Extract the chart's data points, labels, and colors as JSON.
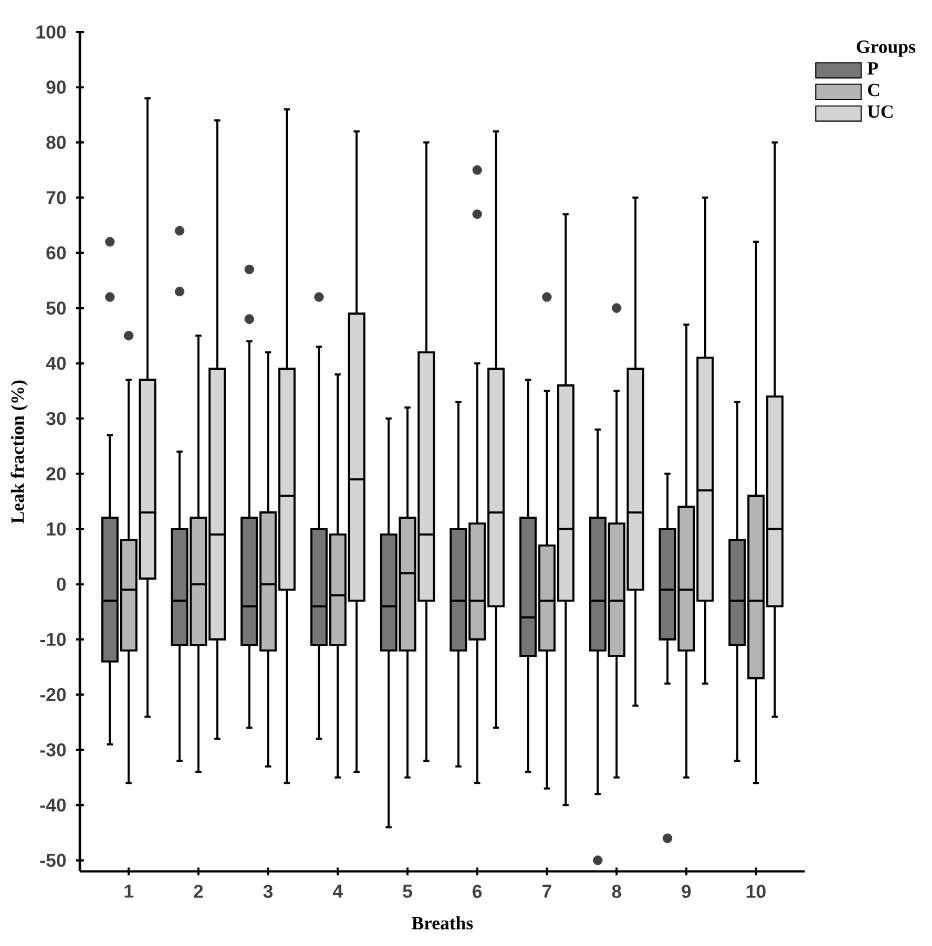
{
  "chart_data": {
    "type": "box",
    "xlabel": "Breaths",
    "ylabel": "Leak fraction (%)",
    "legend_title": "Groups",
    "legend": "top right",
    "grid": false,
    "categories": [
      "1",
      "2",
      "3",
      "4",
      "5",
      "6",
      "7",
      "8",
      "9",
      "10"
    ],
    "ylim": [
      -52,
      100
    ],
    "yticks": [
      -50,
      -40,
      -30,
      -20,
      -10,
      0,
      10,
      20,
      30,
      40,
      50,
      60,
      70,
      80,
      90,
      100
    ],
    "series": [
      {
        "name": "P",
        "color": "#767676",
        "boxes": [
          {
            "low": -29,
            "q1": -14,
            "median": -3,
            "q3": 12,
            "high": 27,
            "outliers": [
              62,
              52
            ]
          },
          {
            "low": -32,
            "q1": -11,
            "median": -3,
            "q3": 10,
            "high": 24,
            "outliers": [
              64,
              53
            ]
          },
          {
            "low": -26,
            "q1": -11,
            "median": -4,
            "q3": 12,
            "high": 44,
            "outliers": [
              57,
              48
            ]
          },
          {
            "low": -28,
            "q1": -11,
            "median": -4,
            "q3": 10,
            "high": 43,
            "outliers": [
              52
            ]
          },
          {
            "low": -44,
            "q1": -12,
            "median": -4,
            "q3": 9,
            "high": 30
          },
          {
            "low": -33,
            "q1": -12,
            "median": -3,
            "q3": 10,
            "high": 33
          },
          {
            "low": -34,
            "q1": -13,
            "median": -6,
            "q3": 12,
            "high": 37
          },
          {
            "low": -38,
            "q1": -12,
            "median": -3,
            "q3": 12,
            "high": 28,
            "outliers": [
              -50
            ]
          },
          {
            "low": -18,
            "q1": -10,
            "median": -1,
            "q3": 10,
            "high": 20,
            "outliers": [
              -46
            ]
          },
          {
            "low": -32,
            "q1": -11,
            "median": -3,
            "q3": 8,
            "high": 33
          }
        ]
      },
      {
        "name": "C",
        "color": "#b4b4b4",
        "boxes": [
          {
            "low": -36,
            "q1": -12,
            "median": -1,
            "q3": 8,
            "high": 37,
            "outliers": [
              45
            ]
          },
          {
            "low": -34,
            "q1": -11,
            "median": 0,
            "q3": 12,
            "high": 45
          },
          {
            "low": -33,
            "q1": -12,
            "median": 0,
            "q3": 13,
            "high": 42
          },
          {
            "low": -35,
            "q1": -11,
            "median": -2,
            "q3": 9,
            "high": 38
          },
          {
            "low": -35,
            "q1": -12,
            "median": 2,
            "q3": 12,
            "high": 32
          },
          {
            "low": -36,
            "q1": -10,
            "median": -3,
            "q3": 11,
            "high": 40,
            "outliers": [
              75,
              67
            ]
          },
          {
            "low": -37,
            "q1": -12,
            "median": -3,
            "q3": 7,
            "high": 35,
            "outliers": [
              52
            ]
          },
          {
            "low": -35,
            "q1": -13,
            "median": -3,
            "q3": 11,
            "high": 35,
            "outliers": [
              50
            ]
          },
          {
            "low": -35,
            "q1": -12,
            "median": -1,
            "q3": 14,
            "high": 47
          },
          {
            "low": -36,
            "q1": -17,
            "median": -3,
            "q3": 16,
            "high": 62
          }
        ]
      },
      {
        "name": "UC",
        "color": "#d4d4d4",
        "boxes": [
          {
            "low": -24,
            "q1": 1,
            "median": 13,
            "q3": 37,
            "high": 88
          },
          {
            "low": -28,
            "q1": -10,
            "median": 9,
            "q3": 39,
            "high": 84
          },
          {
            "low": -36,
            "q1": -1,
            "median": 16,
            "q3": 39,
            "high": 86
          },
          {
            "low": -34,
            "q1": -3,
            "median": 19,
            "q3": 49,
            "high": 82
          },
          {
            "low": -32,
            "q1": -3,
            "median": 9,
            "q3": 42,
            "high": 80
          },
          {
            "low": -26,
            "q1": -4,
            "median": 13,
            "q3": 39,
            "high": 82
          },
          {
            "low": -40,
            "q1": -3,
            "median": 10,
            "q3": 36,
            "high": 67
          },
          {
            "low": -22,
            "q1": -1,
            "median": 13,
            "q3": 39,
            "high": 70
          },
          {
            "low": -18,
            "q1": -3,
            "median": 17,
            "q3": 41,
            "high": 70
          },
          {
            "low": -24,
            "q1": -4,
            "median": 10,
            "q3": 34,
            "high": 80
          }
        ]
      }
    ]
  }
}
